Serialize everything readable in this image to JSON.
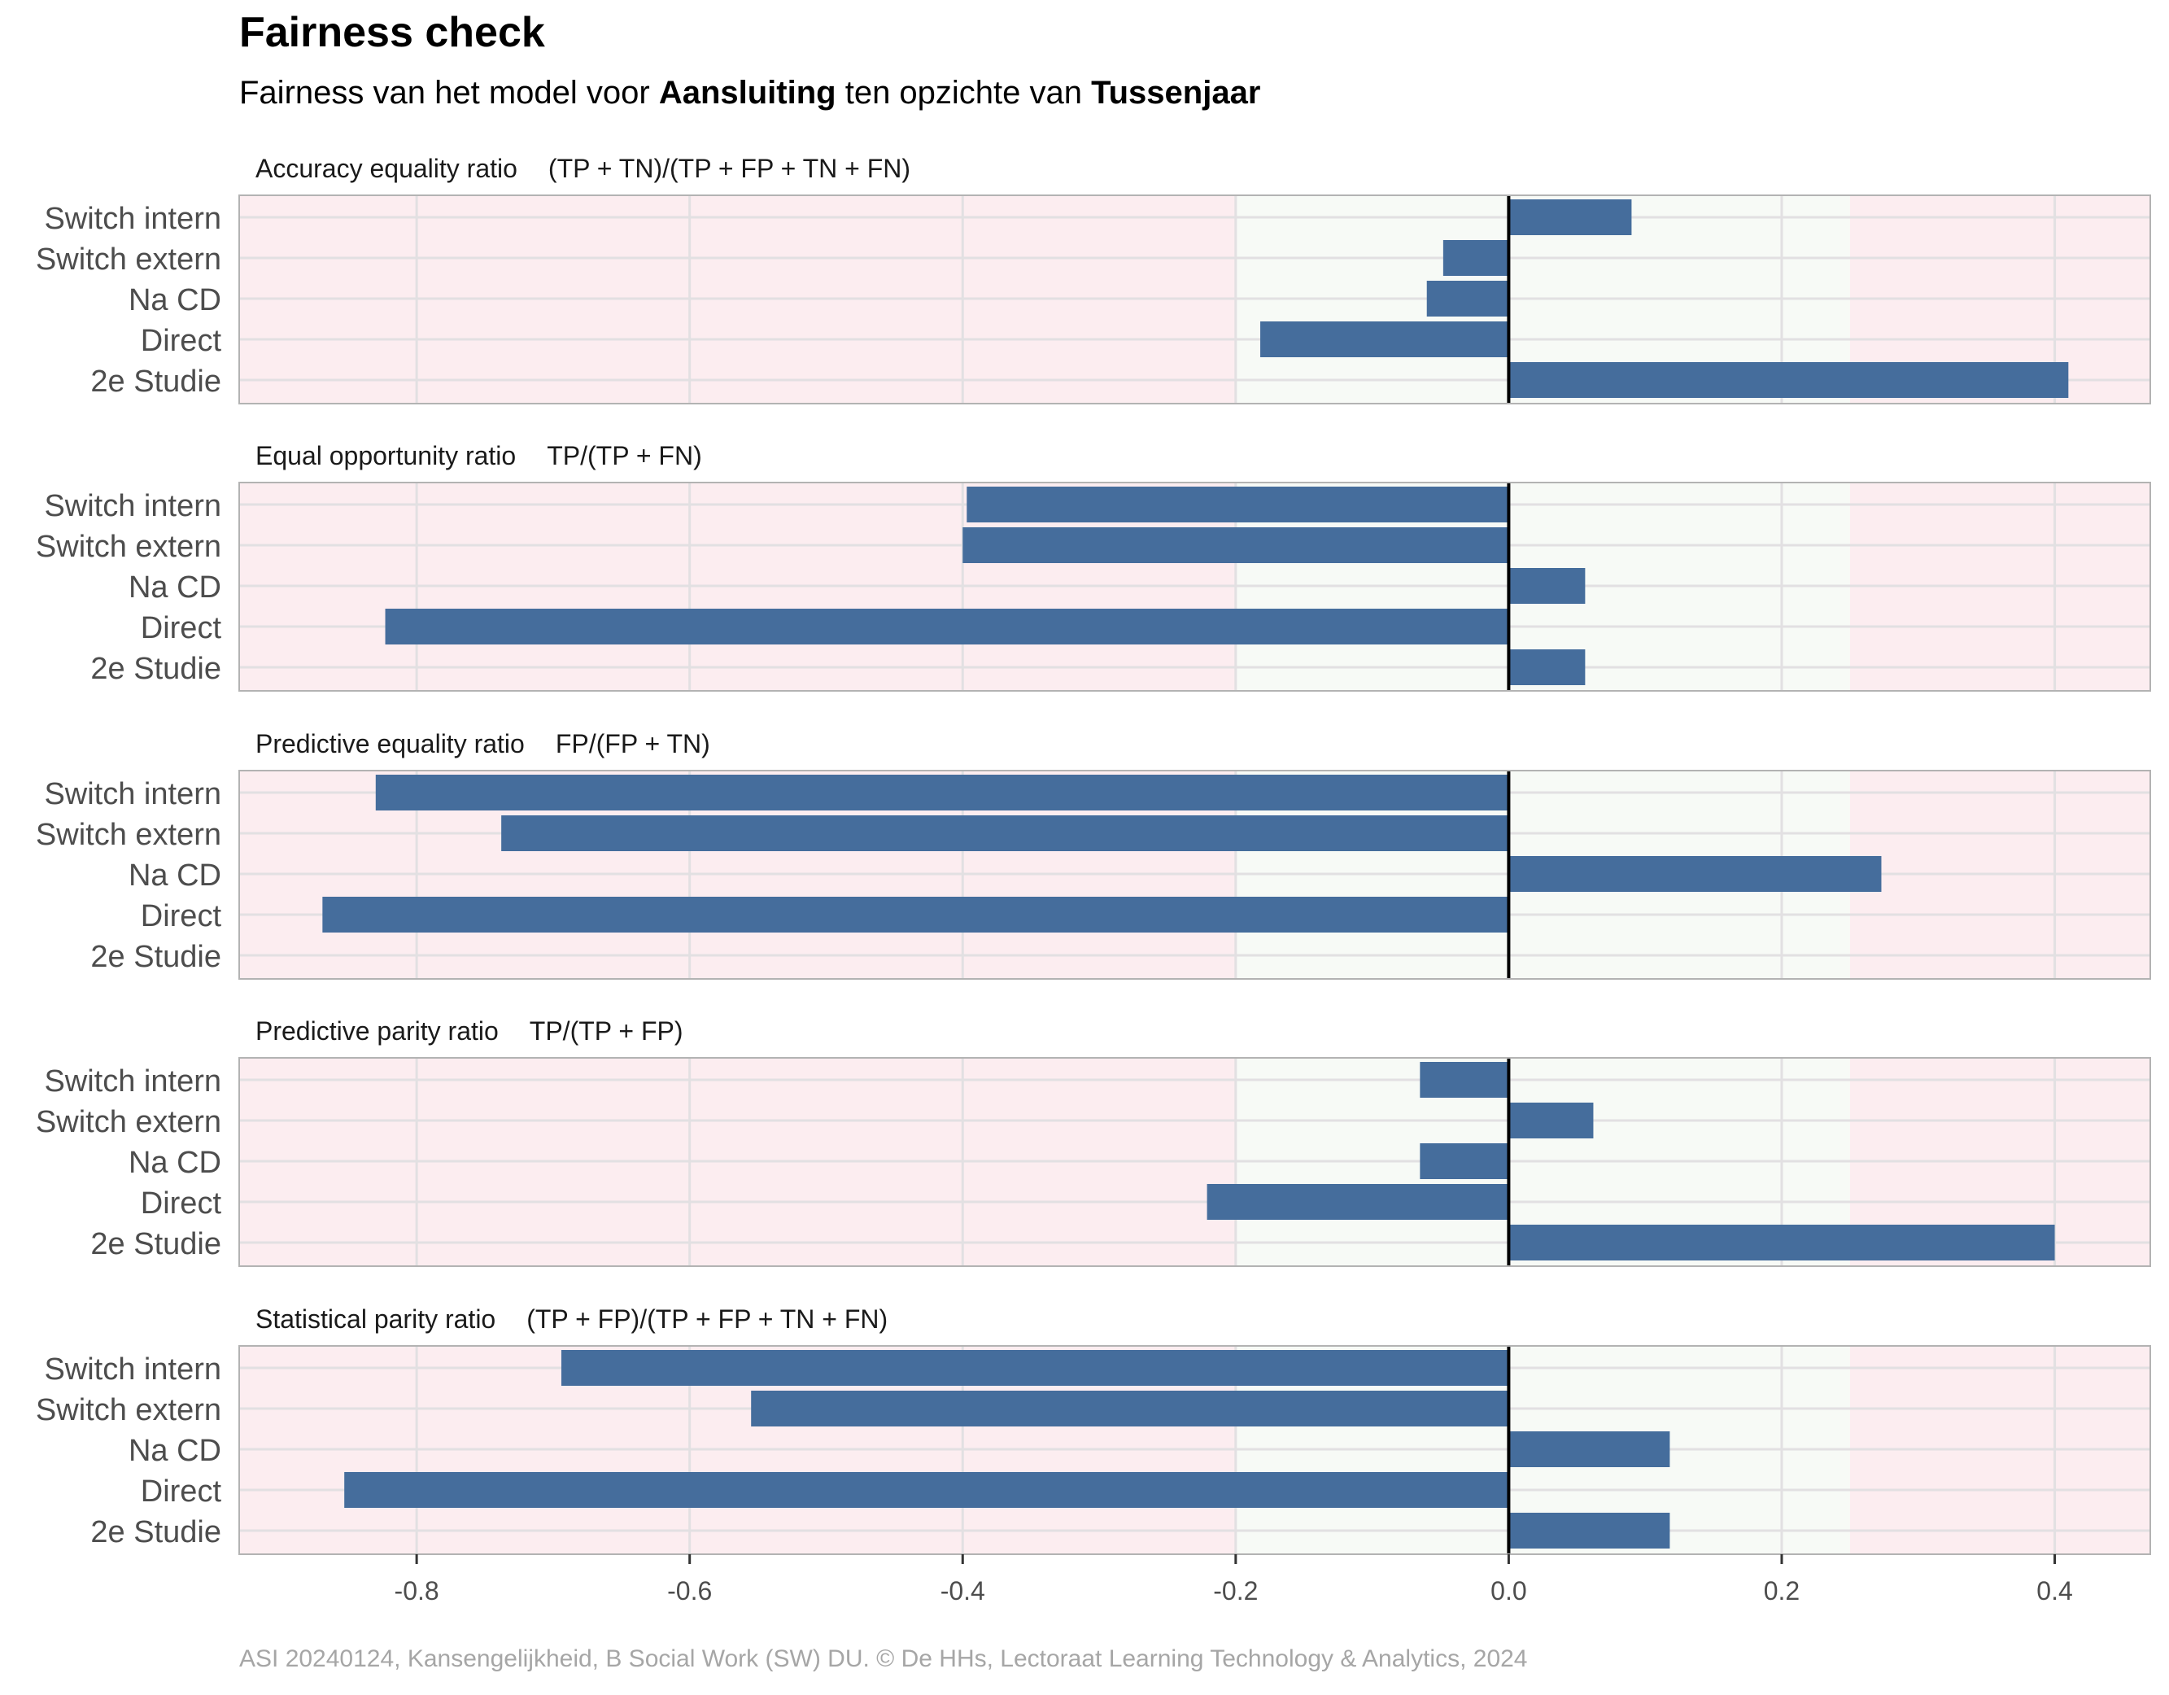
{
  "header": {
    "title": "Fairness check",
    "subtitle_prefix": "Fairness van het model voor ",
    "subtitle_model": "Aansluiting",
    "subtitle_middle": " ten opzichte van ",
    "subtitle_reference": "Tussenjaar"
  },
  "caption": "ASI 20240124, Kansengelijkheid, B Social Work (SW) DU. © De HHs, Lectoraat Learning Technology & Analytics, 2024",
  "colors": {
    "bar": "#456D9C",
    "fair_zone": "#F7FAF6",
    "unfair_zone": "#FCEDF0",
    "grid": "#E2E0E2",
    "zero_line": "#000000"
  },
  "chart_data": {
    "type": "bar",
    "orientation": "horizontal",
    "categories": [
      "Switch intern",
      "Switch extern",
      "Na CD",
      "Direct",
      "2e Studie"
    ],
    "xlim": [
      -0.93,
      0.47
    ],
    "x_ticks": [
      "-0.8",
      "-0.6",
      "-0.4",
      "-0.2",
      "0.0",
      "0.2",
      "0.4"
    ],
    "x_tick_values": [
      -0.8,
      -0.6,
      -0.4,
      -0.2,
      0.0,
      0.2,
      0.4
    ],
    "fair_range": [
      -0.2,
      0.25
    ],
    "grid": true,
    "panels": [
      {
        "name": "Accuracy equality ratio",
        "formula": "(TP + TN)/(TP + FP + TN + FN)",
        "values": [
          0.09,
          -0.048,
          -0.06,
          -0.182,
          0.41
        ]
      },
      {
        "name": "Equal opportunity ratio",
        "formula": "TP/(TP + FN)",
        "values": [
          -0.397,
          -0.4,
          0.056,
          -0.823,
          0.056
        ]
      },
      {
        "name": "Predictive equality ratio",
        "formula": "FP/(FP + TN)",
        "values": [
          -0.83,
          -0.738,
          0.273,
          -0.869,
          0
        ]
      },
      {
        "name": "Predictive parity ratio",
        "formula": "TP/(TP + FP)",
        "values": [
          -0.065,
          0.062,
          -0.065,
          -0.221,
          0.4
        ]
      },
      {
        "name": "Statistical parity ratio",
        "formula": "(TP + FP)/(TP + FP + TN + FN)",
        "values": [
          -0.694,
          -0.555,
          0.118,
          -0.853,
          0.118
        ]
      }
    ]
  }
}
